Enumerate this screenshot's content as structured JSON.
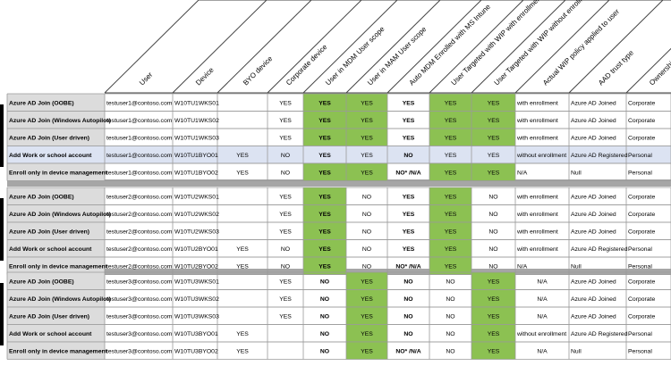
{
  "columns": [
    "User",
    "Device",
    "BYO device",
    "Corporate device",
    "User in MDM User scope",
    "User in MAM User scope",
    "Auto MDM Enrolled with MS Intune",
    "User Targeted with WIP with enrollment",
    "User Targeted with WIP without enrollment",
    "Actual WIP policy applied to user",
    "AAD trust type",
    "Ownership"
  ],
  "colors": {
    "green": "#8cc152",
    "blue_row": "#dce3f2",
    "label_bg": "#dcdcdc",
    "separator": "#a6a6a6",
    "grid": "#9a9a9a"
  },
  "groups": [
    {
      "rows": [
        {
          "label": "Azure AD Join (OOBE)",
          "user": "testuser1@contoso.com",
          "device": "W10TU1WKS01",
          "byo": "",
          "corp": "YES",
          "mdm": "YES",
          "mam": "YES",
          "auto": "YES",
          "wip_e": "YES",
          "wip_ne": "YES",
          "actual": "with enrollment",
          "aad": "Azure AD Joined",
          "own": "Corporate",
          "hl": false,
          "g": [
            0,
            0,
            1,
            1,
            0,
            1,
            1
          ]
        },
        {
          "label": "Azure AD Join (Windows Autopilot)",
          "user": "testuser1@contoso.com",
          "device": "W10TU1WKS02",
          "byo": "",
          "corp": "YES",
          "mdm": "YES",
          "mam": "YES",
          "auto": "YES",
          "wip_e": "YES",
          "wip_ne": "YES",
          "actual": "with enrollment",
          "aad": "Azure AD Joined",
          "own": "Corporate",
          "hl": false,
          "g": [
            0,
            0,
            1,
            1,
            0,
            1,
            1
          ]
        },
        {
          "label": "Azure AD Join (User driven)",
          "user": "testuser1@contoso.com",
          "device": "W10TU1WKS03",
          "byo": "",
          "corp": "YES",
          "mdm": "YES",
          "mam": "YES",
          "auto": "YES",
          "wip_e": "YES",
          "wip_ne": "YES",
          "actual": "with enrollment",
          "aad": "Azure AD Joined",
          "own": "Corporate",
          "hl": false,
          "g": [
            0,
            0,
            1,
            1,
            0,
            1,
            1
          ]
        },
        {
          "label": "Add Work or school account",
          "user": "testuser1@contoso.com",
          "device": "W10TU1BYO01",
          "byo": "YES",
          "corp": "NO",
          "mdm": "YES",
          "mam": "YES",
          "auto": "NO",
          "wip_e": "YES",
          "wip_ne": "YES",
          "actual": "without enrollment",
          "aad": "Azure AD Registered",
          "own": "Personal",
          "hl": true,
          "g": [
            0,
            0,
            0,
            0,
            0,
            0,
            0
          ]
        },
        {
          "label": "Enroll only in device management",
          "user": "testuser1@contoso.com",
          "device": "W10TU1BYO02",
          "byo": "YES",
          "corp": "NO",
          "mdm": "YES",
          "mam": "YES",
          "auto": "NO* /N/A",
          "wip_e": "YES",
          "wip_ne": "YES",
          "actual": "N/A",
          "aad": "Null",
          "own": "Personal",
          "hl": false,
          "g": [
            0,
            0,
            1,
            1,
            0,
            1,
            1
          ]
        }
      ]
    },
    {
      "rows": [
        {
          "label": "Azure AD Join (OOBE)",
          "user": "testuser2@contoso.com",
          "device": "W10TU2WKS01",
          "byo": "",
          "corp": "YES",
          "mdm": "YES",
          "mam": "NO",
          "auto": "YES",
          "wip_e": "YES",
          "wip_ne": "NO",
          "actual": "with enrollment",
          "aad": "Azure AD Joined",
          "own": "Corporate",
          "hl": false,
          "g": [
            0,
            0,
            1,
            0,
            0,
            1,
            0
          ]
        },
        {
          "label": "Azure AD Join (Windows Autopilot)",
          "user": "testuser2@contoso.com",
          "device": "W10TU2WKS02",
          "byo": "",
          "corp": "YES",
          "mdm": "YES",
          "mam": "NO",
          "auto": "YES",
          "wip_e": "YES",
          "wip_ne": "NO",
          "actual": "with enrollment",
          "aad": "Azure AD Joined",
          "own": "Corporate",
          "hl": false,
          "g": [
            0,
            0,
            1,
            0,
            0,
            1,
            0
          ]
        },
        {
          "label": "Azure AD Join (User driven)",
          "user": "testuser2@contoso.com",
          "device": "W10TU2WKS03",
          "byo": "",
          "corp": "YES",
          "mdm": "YES",
          "mam": "NO",
          "auto": "YES",
          "wip_e": "YES",
          "wip_ne": "NO",
          "actual": "with enrollment",
          "aad": "Azure AD Joined",
          "own": "Corporate",
          "hl": false,
          "g": [
            0,
            0,
            1,
            0,
            0,
            1,
            0
          ]
        },
        {
          "label": "Add Work or school account",
          "user": "testuser2@contoso.com",
          "device": "W10TU2BYO01",
          "byo": "YES",
          "corp": "NO",
          "mdm": "YES",
          "mam": "NO",
          "auto": "YES",
          "wip_e": "YES",
          "wip_ne": "NO",
          "actual": "with enrollment",
          "aad": "Azure AD Registered",
          "own": "Personal",
          "hl": false,
          "g": [
            0,
            0,
            1,
            0,
            0,
            1,
            0
          ]
        },
        {
          "label": "Enroll only in device management",
          "user": "testuser2@contoso.com",
          "device": "W10TU2BYO02",
          "byo": "YES",
          "corp": "NO",
          "mdm": "YES",
          "mam": "NO",
          "auto": "NO* /N/A",
          "wip_e": "YES",
          "wip_ne": "NO",
          "actual": "N/A",
          "aad": "Null",
          "own": "Personal",
          "hl": false,
          "g": [
            0,
            0,
            1,
            0,
            0,
            1,
            0
          ]
        }
      ]
    },
    {
      "rows": [
        {
          "label": "Azure AD Join (OOBE)",
          "user": "testuser3@contoso.com",
          "device": "W10TU3WKS01",
          "byo": "",
          "corp": "YES",
          "mdm": "NO",
          "mam": "YES",
          "auto": "NO",
          "wip_e": "NO",
          "wip_ne": "YES",
          "actual": "N/A",
          "aad": "Azure AD Joined",
          "own": "Corporate",
          "hl": false,
          "g": [
            0,
            0,
            0,
            1,
            0,
            0,
            1
          ]
        },
        {
          "label": "Azure AD Join (Windows Autopilot)",
          "user": "testuser3@contoso.com",
          "device": "W10TU3WKS02",
          "byo": "",
          "corp": "YES",
          "mdm": "NO",
          "mam": "YES",
          "auto": "NO",
          "wip_e": "NO",
          "wip_ne": "YES",
          "actual": "N/A",
          "aad": "Azure AD Joined",
          "own": "Corporate",
          "hl": false,
          "g": [
            0,
            0,
            0,
            1,
            0,
            0,
            1
          ]
        },
        {
          "label": "Azure AD Join (User driven)",
          "user": "testuser3@contoso.com",
          "device": "W10TU3WKS03",
          "byo": "",
          "corp": "YES",
          "mdm": "NO",
          "mam": "YES",
          "auto": "NO",
          "wip_e": "NO",
          "wip_ne": "YES",
          "actual": "N/A",
          "aad": "Azure AD Joined",
          "own": "Corporate",
          "hl": false,
          "g": [
            0,
            0,
            0,
            1,
            0,
            0,
            1
          ]
        },
        {
          "label": "Add Work or school account",
          "user": "testuser3@contoso.com",
          "device": "W10TU3BYO01",
          "byo": "YES",
          "corp": "",
          "mdm": "NO",
          "mam": "YES",
          "auto": "NO",
          "wip_e": "NO",
          "wip_ne": "YES",
          "actual": "without enrollment",
          "aad": "Azure AD Registered",
          "own": "Personal",
          "hl": false,
          "g": [
            0,
            0,
            0,
            1,
            0,
            0,
            1
          ]
        },
        {
          "label": "Enroll only in device management",
          "user": "testuser3@contoso.com",
          "device": "W10TU3BYO02",
          "byo": "YES",
          "corp": "",
          "mdm": "NO",
          "mam": "YES",
          "auto": "NO* /N/A",
          "wip_e": "NO",
          "wip_ne": "YES",
          "actual": "N/A",
          "aad": "Null",
          "own": "Personal",
          "hl": false,
          "g": [
            0,
            0,
            0,
            1,
            0,
            0,
            1
          ]
        }
      ]
    }
  ]
}
